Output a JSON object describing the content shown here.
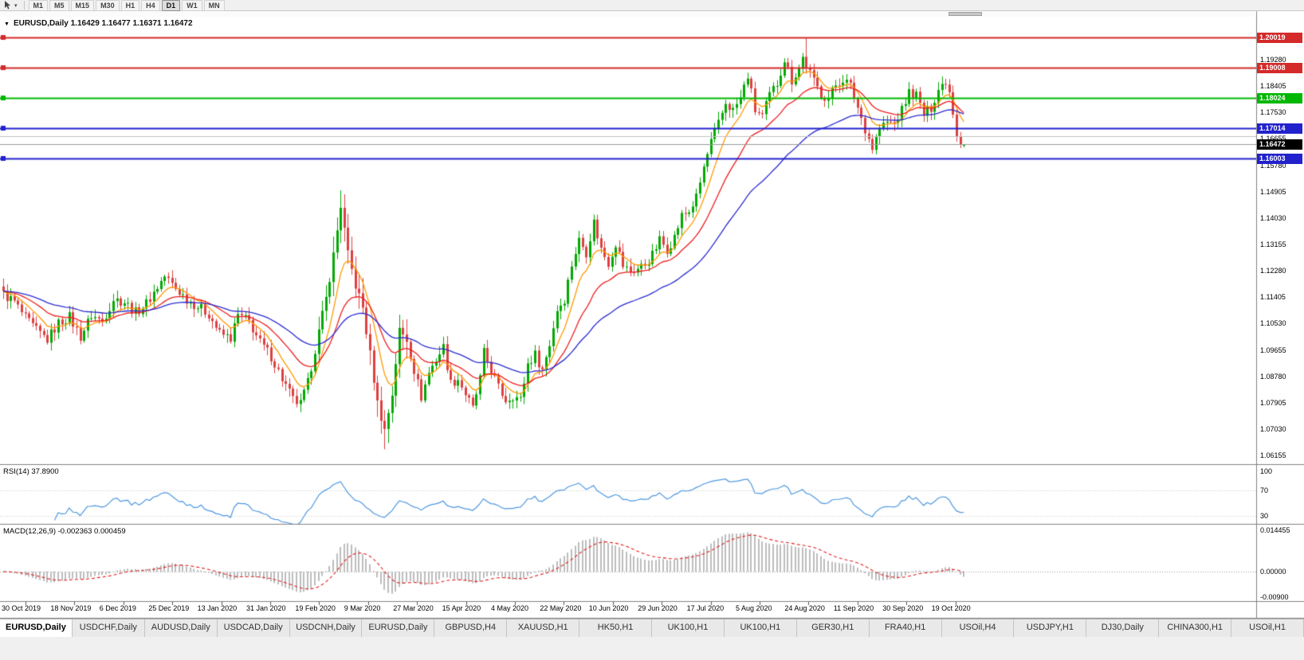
{
  "toolbar": {
    "timeframes": [
      "M1",
      "M5",
      "M15",
      "M30",
      "H1",
      "H4",
      "D1",
      "W1",
      "MN"
    ],
    "active_timeframe": "D1"
  },
  "chart": {
    "title": "EURUSD,Daily 1.16429 1.16477 1.16371 1.16472",
    "symbol": "EURUSD,Daily",
    "ohlc": {
      "open": "1.16429",
      "high": "1.16477",
      "low": "1.16371",
      "close": "1.16472"
    }
  },
  "price_axis": {
    "ticks": [
      "1.19280",
      "1.18405",
      "1.17530",
      "1.16655",
      "1.15780",
      "1.14905",
      "1.14030",
      "1.13155",
      "1.12280",
      "1.11405",
      "1.10530",
      "1.09655",
      "1.08780",
      "1.07905",
      "1.07030",
      "1.06155"
    ]
  },
  "levels": [
    {
      "label": "1.20019",
      "price": 1.20019,
      "color": "#d42a2a"
    },
    {
      "label": "1.19008",
      "price": 1.19008,
      "color": "#d42a2a"
    },
    {
      "label": "1.18024",
      "price": 1.18024,
      "color": "#00b800"
    },
    {
      "label": "1.17014",
      "price": 1.17014,
      "color": "#2222cc"
    },
    {
      "label": "1.16003",
      "price": 1.16003,
      "color": "#2222cc"
    }
  ],
  "bid_line": {
    "label": "1.16472",
    "price": 1.16472,
    "line_color": "#9a9a9a",
    "badge_color": "#000000"
  },
  "aux_line": {
    "price": 1.1674,
    "color": "#c0c0c0"
  },
  "rsi": {
    "label": "RSI(14) 37.8900",
    "period": 14,
    "value": 37.89,
    "axis_labels": [
      "100",
      "70",
      "30"
    ],
    "axis_values": [
      100,
      70,
      30
    ],
    "level_lines": [
      70,
      30
    ],
    "line_color": "#4d97e0"
  },
  "macd": {
    "label": "MACD(12,26,9) -0.002363 0.000459",
    "fast": 12,
    "slow": 26,
    "signal_period": 9,
    "value_main": -0.002363,
    "value_signal": 0.000459,
    "axis_labels": [
      "0.014455",
      "0.00000",
      "-0.00900"
    ],
    "axis_values": [
      0.014455,
      0,
      -0.009
    ],
    "histogram_color": "#bdbdbd",
    "signal_color": "#e02020"
  },
  "date_axis": [
    "30 Oct 2019",
    "18 Nov 2019",
    "6 Dec 2019",
    "25 Dec 2019",
    "13 Jan 2020",
    "31 Jan 2020",
    "19 Feb 2020",
    "9 Mar 2020",
    "27 Mar 2020",
    "15 Apr 2020",
    "4 May 2020",
    "22 May 2020",
    "10 Jun 2020",
    "29 Jun 2020",
    "17 Jul 2020",
    "5 Aug 2020",
    "24 Aug 2020",
    "11 Sep 2020",
    "30 Sep 2020",
    "19 Oct 2020"
  ],
  "tabs": {
    "items": [
      "EURUSD,Daily",
      "USDCHF,Daily",
      "AUDUSD,Daily",
      "USDCAD,Daily",
      "USDCNH,Daily",
      "EURUSD,Daily",
      "GBPUSD,H4",
      "XAUUSD,H1",
      "HK50,H1",
      "UK100,H1",
      "UK100,H1",
      "GER30,H1",
      "FRA40,H1",
      "USOil,H4",
      "USDJPY,H1",
      "DJ30,Daily",
      "CHINA300,H1",
      "USOil,H1"
    ],
    "active_index": 0
  },
  "chart_data": {
    "type": "candlestick",
    "title": "EURUSD,Daily",
    "bars_count": 263,
    "up_color": "#00a800",
    "down_color": "#dd4040",
    "price_range_visible": {
      "top": 1.20705,
      "bottom": 1.0587
    },
    "ma_lines": [
      {
        "name": "fast",
        "period": 8,
        "color": "#ff9900"
      },
      {
        "name": "medium",
        "period": 20,
        "color": "#ee1c1c"
      },
      {
        "name": "slow",
        "period": 45,
        "color": "#2b2bd0"
      }
    ],
    "close_waypoints": [
      [
        0,
        1.115
      ],
      [
        3,
        1.1125
      ],
      [
        6,
        1.107
      ],
      [
        9,
        1.103
      ],
      [
        12,
        1.1
      ],
      [
        15,
        1.1055
      ],
      [
        18,
        1.1075
      ],
      [
        21,
        1.101
      ],
      [
        24,
        1.108
      ],
      [
        27,
        1.106
      ],
      [
        30,
        1.1135
      ],
      [
        33,
        1.1125
      ],
      [
        36,
        1.109
      ],
      [
        39,
        1.112
      ],
      [
        42,
        1.1175
      ],
      [
        44,
        1.121
      ],
      [
        47,
        1.117
      ],
      [
        50,
        1.1135
      ],
      [
        53,
        1.111
      ],
      [
        56,
        1.1085
      ],
      [
        59,
        1.102
      ],
      [
        62,
        1.1005
      ],
      [
        64,
        1.108
      ],
      [
        67,
        1.106
      ],
      [
        70,
        1.099
      ],
      [
        73,
        1.0945
      ],
      [
        76,
        1.087
      ],
      [
        79,
        1.08
      ],
      [
        81,
        1.0785
      ],
      [
        83,
        1.0855
      ],
      [
        86,
        1.1025
      ],
      [
        88,
        1.1135
      ],
      [
        90,
        1.128
      ],
      [
        92,
        1.1445
      ],
      [
        94,
        1.128
      ],
      [
        96,
        1.118
      ],
      [
        98,
        1.1105
      ],
      [
        100,
        1.095
      ],
      [
        102,
        1.079
      ],
      [
        104,
        1.07
      ],
      [
        106,
        1.082
      ],
      [
        108,
        1.103
      ],
      [
        110,
        1.1
      ],
      [
        112,
        1.09
      ],
      [
        114,
        1.081
      ],
      [
        116,
        1.089
      ],
      [
        118,
        1.0935
      ],
      [
        120,
        1.0975
      ],
      [
        122,
        1.0855
      ],
      [
        124,
        1.087
      ],
      [
        126,
        1.082
      ],
      [
        128,
        1.077
      ],
      [
        130,
        1.087
      ],
      [
        131,
        1.0955
      ],
      [
        133,
        1.09
      ],
      [
        135,
        1.084
      ],
      [
        137,
        1.08
      ],
      [
        139,
        1.0815
      ],
      [
        141,
        1.08
      ],
      [
        143,
        1.092
      ],
      [
        145,
        1.095
      ],
      [
        147,
        1.09
      ],
      [
        149,
        1.0985
      ],
      [
        151,
        1.11
      ],
      [
        153,
        1.1135
      ],
      [
        155,
        1.125
      ],
      [
        157,
        1.133
      ],
      [
        159,
        1.129
      ],
      [
        161,
        1.139
      ],
      [
        163,
        1.13
      ],
      [
        165,
        1.1255
      ],
      [
        167,
        1.132
      ],
      [
        169,
        1.1245
      ],
      [
        171,
        1.1225
      ],
      [
        173,
        1.1235
      ],
      [
        175,
        1.125
      ],
      [
        177,
        1.128
      ],
      [
        179,
        1.133
      ],
      [
        181,
        1.13
      ],
      [
        183,
        1.134
      ],
      [
        185,
        1.141
      ],
      [
        187,
        1.1425
      ],
      [
        189,
        1.147
      ],
      [
        191,
        1.157
      ],
      [
        193,
        1.1655
      ],
      [
        195,
        1.1715
      ],
      [
        197,
        1.1785
      ],
      [
        199,
        1.176
      ],
      [
        201,
        1.18
      ],
      [
        203,
        1.1875
      ],
      [
        205,
        1.176
      ],
      [
        207,
        1.174
      ],
      [
        209,
        1.181
      ],
      [
        211,
        1.185
      ],
      [
        213,
        1.193
      ],
      [
        215,
        1.186
      ],
      [
        217,
        1.19
      ],
      [
        218,
        1.1935
      ],
      [
        219,
        1.191
      ],
      [
        221,
        1.1855
      ],
      [
        223,
        1.1815
      ],
      [
        225,
        1.18
      ],
      [
        227,
        1.1845
      ],
      [
        229,
        1.1865
      ],
      [
        231,
        1.184
      ],
      [
        233,
        1.177
      ],
      [
        235,
        1.17
      ],
      [
        237,
        1.1635
      ],
      [
        239,
        1.17
      ],
      [
        241,
        1.172
      ],
      [
        243,
        1.1715
      ],
      [
        245,
        1.176
      ],
      [
        247,
        1.182
      ],
      [
        249,
        1.181
      ],
      [
        251,
        1.1745
      ],
      [
        253,
        1.177
      ],
      [
        255,
        1.183
      ],
      [
        257,
        1.186
      ],
      [
        258,
        1.182
      ],
      [
        259,
        1.1746
      ],
      [
        260,
        1.1674
      ],
      [
        261,
        1.1647
      ],
      [
        262,
        1.16472
      ]
    ],
    "spike_overrides": [
      {
        "bar": 81,
        "low": 1.0778
      },
      {
        "bar": 92,
        "high": 1.1495
      },
      {
        "bar": 104,
        "low": 1.0636
      },
      {
        "bar": 219,
        "high": 1.2001
      }
    ],
    "current_bar": {
      "open": 1.16429,
      "high": 1.16477,
      "low": 1.16371,
      "close": 1.16472
    }
  }
}
